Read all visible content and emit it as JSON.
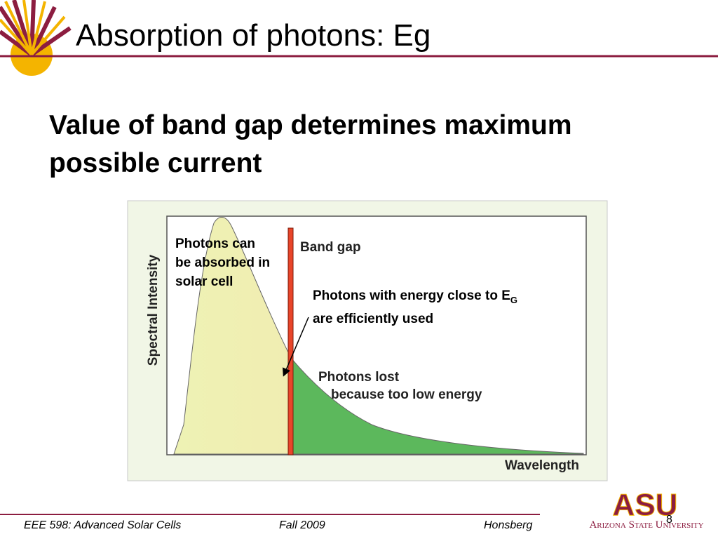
{
  "header": {
    "title": "Absorption of photons: Eg"
  },
  "body": {
    "heading": "Value of band gap determines maximum possible current"
  },
  "figure": {
    "y_axis_label": "Spectral Intensity",
    "x_axis_label": "Wavelength",
    "band_gap_label": "Band gap",
    "absorbed_note": "Photons can be absorbed in solar cell",
    "efficient_note": {
      "before": "Photons with energy close to E",
      "subscript": "G",
      "after": " are efficiently used"
    },
    "lost_note": [
      "Photons lost",
      "because too low energy"
    ]
  },
  "footer": {
    "course": "EEE 598: Advanced Solar Cells",
    "term": "Fall 2009",
    "author": "Honsberg",
    "page": "8",
    "logo_mark": "ASU",
    "university": "Arizona State University"
  }
}
